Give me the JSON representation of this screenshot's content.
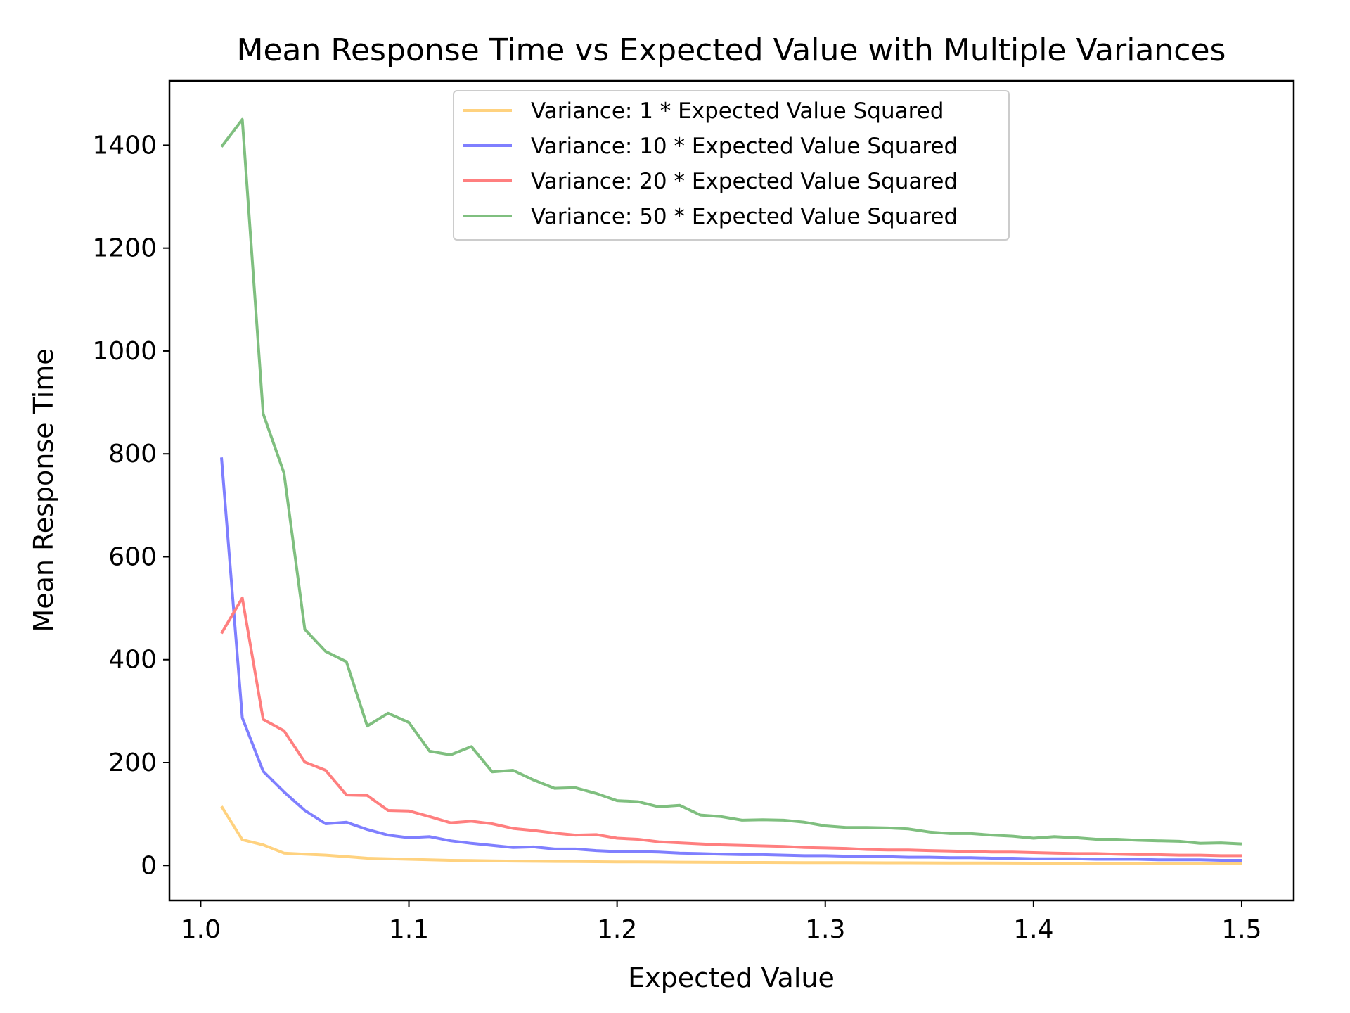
{
  "chart_data": {
    "type": "line",
    "title": "Mean Response Time vs Expected Value with Multiple Variances",
    "xlabel": "Expected Value",
    "ylabel": "Mean Response Time",
    "xlim": [
      0.985,
      1.525
    ],
    "ylim": [
      -68,
      1525
    ],
    "xticks": [
      1.0,
      1.1,
      1.2,
      1.3,
      1.4,
      1.5
    ],
    "xtick_labels": [
      "1.0",
      "1.1",
      "1.2",
      "1.3",
      "1.4",
      "1.5"
    ],
    "yticks": [
      0,
      200,
      400,
      600,
      800,
      1000,
      1200,
      1400
    ],
    "ytick_labels": [
      "0",
      "200",
      "400",
      "600",
      "800",
      "1000",
      "1200",
      "1400"
    ],
    "grid": false,
    "legend_position": "top-center",
    "x": [
      1.01,
      1.02,
      1.03,
      1.04,
      1.05,
      1.06,
      1.07,
      1.08,
      1.09,
      1.1,
      1.11,
      1.12,
      1.13,
      1.14,
      1.15,
      1.16,
      1.17,
      1.18,
      1.19,
      1.2,
      1.21,
      1.22,
      1.23,
      1.24,
      1.25,
      1.26,
      1.27,
      1.28,
      1.29,
      1.3,
      1.31,
      1.32,
      1.33,
      1.34,
      1.35,
      1.36,
      1.37,
      1.38,
      1.39,
      1.4,
      1.41,
      1.42,
      1.43,
      1.44,
      1.45,
      1.46,
      1.47,
      1.48,
      1.49,
      1.5
    ],
    "series": [
      {
        "name": "Variance: 1 * Expected Value Squared",
        "color": "#ffd27f",
        "values": [
          115,
          50,
          40,
          24,
          22,
          20,
          17,
          14,
          13,
          12,
          11,
          10,
          9.5,
          9,
          8.5,
          8,
          7.8,
          7.5,
          7.2,
          7,
          6.8,
          6.6,
          6.4,
          6.2,
          6,
          5.9,
          5.8,
          5.7,
          5.6,
          5.5,
          5.4,
          5.3,
          5.2,
          5.1,
          5.0,
          4.9,
          4.8,
          4.7,
          4.6,
          4.5,
          4.4,
          4.3,
          4.2,
          4.1,
          4.0,
          3.9,
          3.8,
          3.7,
          3.6,
          3.5
        ]
      },
      {
        "name": "Variance: 10 * Expected Value Squared",
        "color": "#7f7fff",
        "values": [
          793,
          287,
          183,
          143,
          107,
          81,
          84,
          70,
          59,
          54,
          56,
          48,
          43,
          39,
          35,
          36,
          32,
          32,
          29,
          27,
          27,
          26,
          24,
          23,
          22,
          21,
          21,
          20,
          19,
          19,
          18,
          17,
          17,
          16,
          16,
          15,
          15,
          14,
          14,
          13,
          13,
          13,
          12,
          12,
          12,
          11,
          11,
          11,
          10,
          10
        ]
      },
      {
        "name": "Variance: 20 * Expected Value Squared",
        "color": "#ff7f7f",
        "values": [
          451,
          520,
          284,
          262,
          201,
          185,
          137,
          136,
          107,
          106,
          95,
          83,
          86,
          81,
          72,
          68,
          63,
          59,
          60,
          53,
          51,
          46,
          44,
          42,
          40,
          39,
          38,
          37,
          35,
          34,
          33,
          31,
          30,
          30,
          29,
          28,
          27,
          26,
          26,
          25,
          24,
          23,
          23,
          22,
          21,
          21,
          20,
          20,
          19,
          19
        ]
      },
      {
        "name": "Variance: 50 * Expected Value Squared",
        "color": "#7fbf7f",
        "values": [
          1397,
          1450,
          878,
          763,
          459,
          416,
          396,
          271,
          296,
          278,
          222,
          215,
          231,
          182,
          185,
          166,
          150,
          151,
          140,
          126,
          124,
          114,
          117,
          98,
          95,
          88,
          89,
          88,
          84,
          77,
          74,
          74,
          73,
          71,
          65,
          62,
          62,
          59,
          57,
          53,
          56,
          54,
          51,
          51,
          49,
          48,
          47,
          43,
          44,
          42
        ]
      }
    ]
  }
}
